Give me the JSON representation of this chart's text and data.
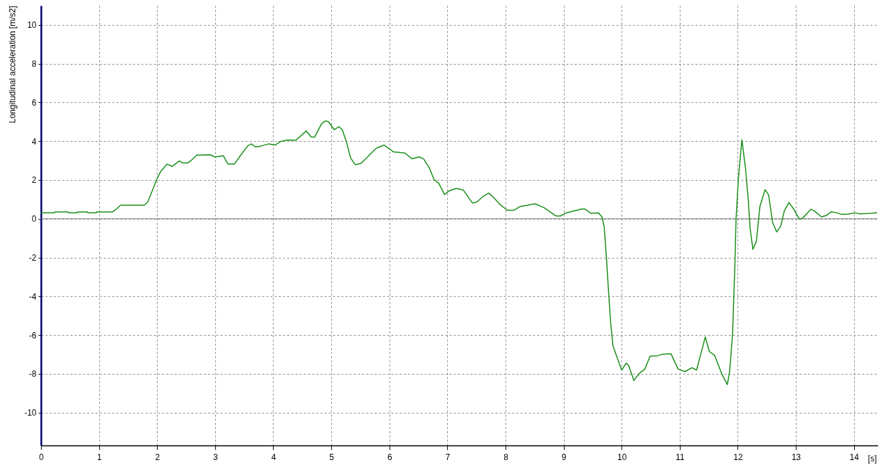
{
  "chart_data": {
    "type": "line",
    "ylabel": "Longitudinal acceleration [m/s2]",
    "xlabel": "[s]",
    "xlim": [
      0,
      14.41
    ],
    "ylim": [
      -11.7,
      11.0
    ],
    "xticks": [
      0,
      1,
      2,
      3,
      4,
      5,
      6,
      7,
      8,
      9,
      10,
      11,
      12,
      13,
      14
    ],
    "yticks": [
      -10,
      -8,
      -6,
      -4,
      -2,
      0,
      2,
      4,
      6,
      8,
      10
    ],
    "grid": true,
    "line_style": "solid",
    "ref_lines": [
      {
        "axis": "y",
        "value": 0,
        "color": "#808080"
      }
    ],
    "series": [
      {
        "color": "#1a8f1a",
        "x": [
          0,
          0.23,
          0.24,
          0.47,
          0.48,
          0.62,
          0.63,
          0.8,
          0.81,
          0.95,
          0.96,
          1.23,
          1.3,
          1.37,
          1.78,
          1.84,
          2.0,
          2.06,
          2.17,
          2.26,
          2.38,
          2.44,
          2.53,
          2.6,
          2.68,
          2.92,
          3.0,
          3.14,
          3.22,
          3.33,
          3.44,
          3.56,
          3.62,
          3.7,
          3.8,
          3.92,
          4.03,
          4.12,
          4.24,
          4.39,
          4.57,
          4.65,
          4.71,
          4.83,
          4.9,
          4.95,
          5.05,
          5.13,
          5.19,
          5.27,
          5.33,
          5.41,
          5.51,
          5.63,
          5.77,
          5.91,
          5.99,
          6.07,
          6.27,
          6.39,
          6.51,
          6.59,
          6.69,
          6.77,
          6.85,
          6.95,
          7.03,
          7.15,
          7.27,
          7.43,
          7.51,
          7.61,
          7.71,
          7.79,
          7.91,
          8.03,
          8.15,
          8.25,
          8.51,
          8.67,
          8.87,
          8.95,
          9.03,
          9.31,
          9.37,
          9.47,
          9.6,
          9.66,
          9.7,
          9.74,
          9.77,
          9.81,
          9.85,
          9.92,
          10.0,
          10.08,
          10.12,
          10.21,
          10.3,
          10.4,
          10.49,
          10.62,
          10.7,
          10.85,
          10.97,
          11.09,
          11.21,
          11.29,
          11.44,
          11.51,
          11.6,
          11.73,
          11.82,
          11.86,
          11.91,
          11.95,
          11.97,
          12.01,
          12.07,
          12.13,
          12.18,
          12.21,
          12.26,
          12.32,
          12.38,
          12.47,
          12.53,
          12.6,
          12.67,
          12.74,
          12.8,
          12.88,
          12.96,
          13.06,
          13.12,
          13.26,
          13.32,
          13.44,
          13.52,
          13.61,
          13.71,
          13.79,
          13.91,
          14.01,
          14.11,
          14.29,
          14.39
        ],
        "values": [
          0.3,
          0.3,
          0.35,
          0.35,
          0.3,
          0.3,
          0.35,
          0.35,
          0.3,
          0.3,
          0.35,
          0.35,
          0.5,
          0.7,
          0.7,
          0.87,
          2.07,
          2.43,
          2.82,
          2.7,
          2.98,
          2.88,
          2.88,
          3.04,
          3.28,
          3.3,
          3.18,
          3.25,
          2.82,
          2.82,
          3.28,
          3.76,
          3.86,
          3.7,
          3.76,
          3.86,
          3.8,
          3.98,
          4.06,
          4.05,
          4.53,
          4.23,
          4.2,
          4.89,
          5.05,
          5.01,
          4.59,
          4.75,
          4.59,
          3.87,
          3.15,
          2.79,
          2.85,
          3.21,
          3.63,
          3.8,
          3.63,
          3.45,
          3.39,
          3.09,
          3.19,
          3.09,
          2.61,
          2.01,
          1.83,
          1.25,
          1.44,
          1.56,
          1.49,
          0.81,
          0.87,
          1.14,
          1.32,
          1.11,
          0.72,
          0.44,
          0.44,
          0.63,
          0.77,
          0.56,
          0.14,
          0.14,
          0.29,
          0.5,
          0.5,
          0.28,
          0.3,
          0.1,
          -0.44,
          -2.12,
          -3.56,
          -5.35,
          -6.55,
          -7.15,
          -7.81,
          -7.45,
          -7.57,
          -8.35,
          -7.99,
          -7.75,
          -7.09,
          -7.07,
          -6.99,
          -6.97,
          -7.75,
          -7.89,
          -7.69,
          -7.81,
          -6.1,
          -6.85,
          -7.05,
          -8.05,
          -8.56,
          -7.87,
          -5.95,
          -2.36,
          -0.02,
          2.07,
          4.08,
          2.67,
          0.99,
          -0.44,
          -1.58,
          -1.16,
          0.63,
          1.5,
          1.23,
          -0.2,
          -0.68,
          -0.38,
          0.4,
          0.84,
          0.51,
          -0.02,
          0.04,
          0.49,
          0.4,
          0.1,
          0.16,
          0.36,
          0.3,
          0.22,
          0.24,
          0.3,
          0.25,
          0.28,
          0.31
        ]
      }
    ]
  }
}
